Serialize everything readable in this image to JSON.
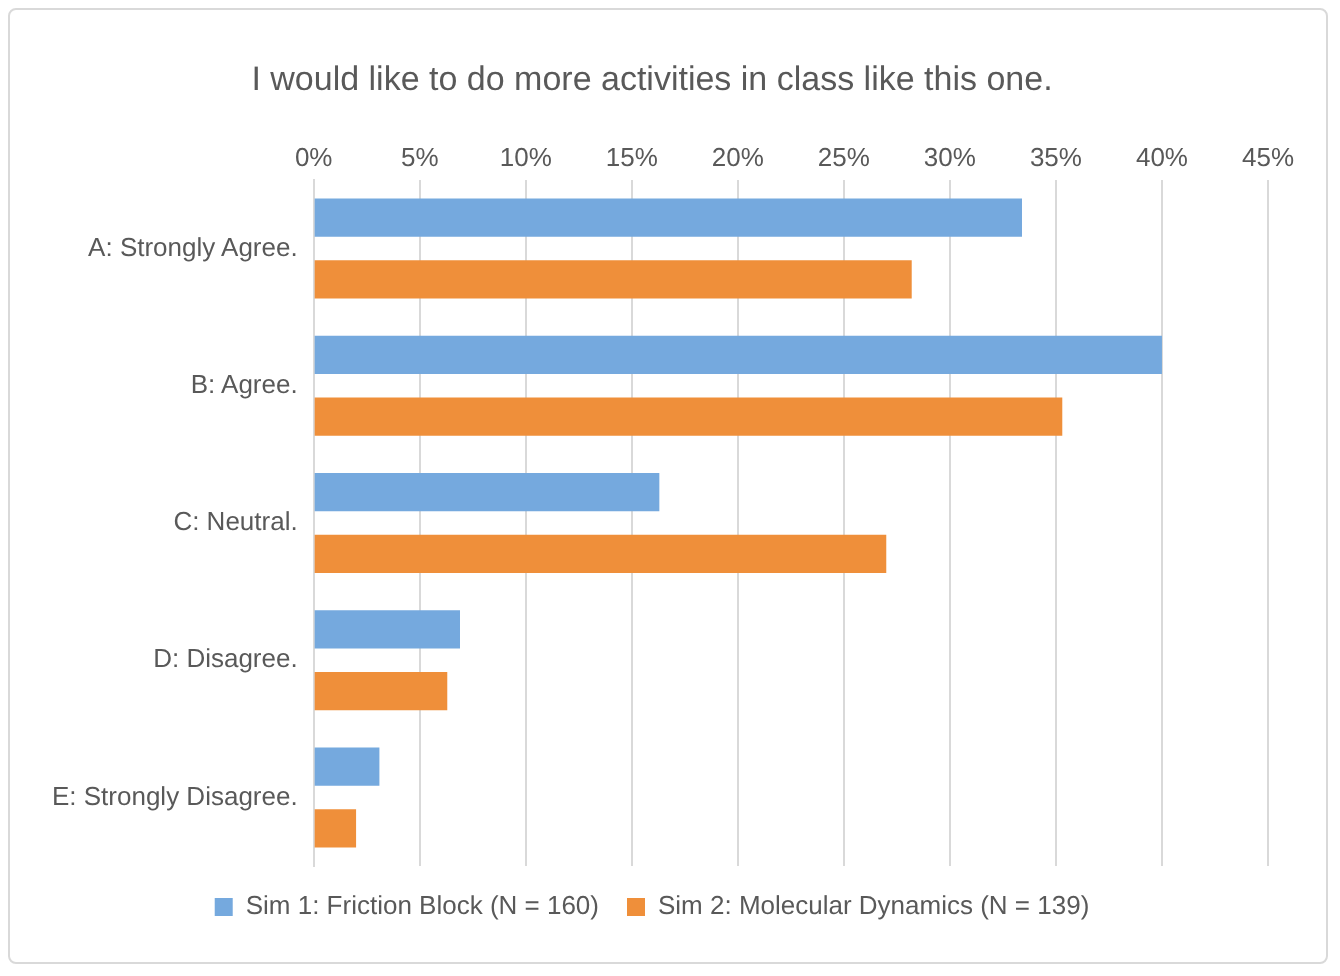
{
  "chart_data": {
    "type": "bar",
    "orientation": "horizontal",
    "title": "I would like to do more activities in class like this one.",
    "categories": [
      "A: Strongly Agree.",
      "B: Agree.",
      "C: Neutral.",
      "D: Disagree.",
      "E: Strongly Disagree."
    ],
    "series": [
      {
        "name": "Sim 1: Friction Block (N = 160)",
        "color": "#75a9de",
        "values": [
          33.4,
          40,
          16.3,
          6.9,
          3.1
        ]
      },
      {
        "name": "Sim 2: Molecular Dynamics (N = 139)",
        "color": "#ef8f3a",
        "values": [
          28.2,
          35.3,
          27.0,
          6.3,
          2.0
        ]
      }
    ],
    "xlim": [
      0,
      45
    ],
    "xticks": [
      {
        "value": 0,
        "label": "0%"
      },
      {
        "value": 5,
        "label": "5%"
      },
      {
        "value": 10,
        "label": "10%"
      },
      {
        "value": 15,
        "label": "15%"
      },
      {
        "value": 20,
        "label": "20%"
      },
      {
        "value": 25,
        "label": "25%"
      },
      {
        "value": 30,
        "label": "30%"
      },
      {
        "value": 35,
        "label": "35%"
      },
      {
        "value": 40,
        "label": "40%"
      },
      {
        "value": 45,
        "label": "45%"
      }
    ],
    "grid": "x",
    "legend": "bottom"
  }
}
